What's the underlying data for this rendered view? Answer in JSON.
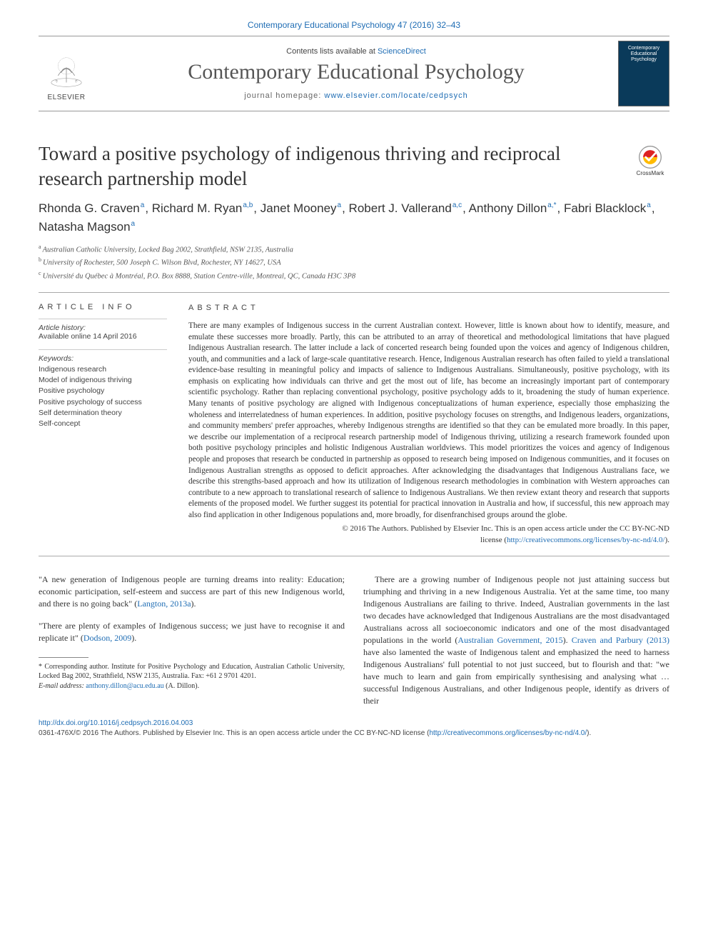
{
  "journal": {
    "headRef": "Contemporary Educational Psychology 47 (2016) 32–43",
    "contentsLine": "Contents lists available at ",
    "scienceDirect": "ScienceDirect",
    "title": "Contemporary Educational Psychology",
    "homepageLabel": "journal homepage: ",
    "homepageUrl": "www.elsevier.com/locate/cedpsych",
    "publisherWord": "ELSEVIER",
    "coverTop": "Contemporary Educational Psychology"
  },
  "article": {
    "title": "Toward a positive psychology of indigenous thriving and reciprocal research partnership model",
    "crossmark": "CrossMark"
  },
  "authors": [
    {
      "name": "Rhonda G. Craven",
      "aff": "a"
    },
    {
      "name": "Richard M. Ryan",
      "aff": "a,b"
    },
    {
      "name": "Janet Mooney",
      "aff": "a"
    },
    {
      "name": "Robert J. Vallerand",
      "aff": "a,c"
    },
    {
      "name": "Anthony Dillon",
      "aff": "a,*"
    },
    {
      "name": "Fabri Blacklock",
      "aff": "a"
    },
    {
      "name": "Natasha Magson",
      "aff": "a"
    }
  ],
  "affiliations": [
    {
      "sup": "a",
      "text": "Australian Catholic University, Locked Bag 2002, Strathfield, NSW 2135, Australia"
    },
    {
      "sup": "b",
      "text": "University of Rochester, 500 Joseph C. Wilson Blvd, Rochester, NY 14627, USA"
    },
    {
      "sup": "c",
      "text": "Université du Québec à Montréal, P.O. Box 8888, Station Centre-ville, Montreal, QC, Canada H3C 3P8"
    }
  ],
  "info": {
    "infoHead": "ARTICLE INFO",
    "historyLabel": "Article history:",
    "historyValue": "Available online 14 April 2016",
    "keywordsLabel": "Keywords:",
    "keywords": [
      "Indigenous research",
      "Model of indigenous thriving",
      "Positive psychology",
      "Positive psychology of success",
      "Self determination theory",
      "Self-concept"
    ]
  },
  "abstract": {
    "head": "ABSTRACT",
    "text": "There are many examples of Indigenous success in the current Australian context. However, little is known about how to identify, measure, and emulate these successes more broadly. Partly, this can be attributed to an array of theoretical and methodological limitations that have plagued Indigenous Australian research. The latter include a lack of concerted research being founded upon the voices and agency of Indigenous children, youth, and communities and a lack of large-scale quantitative research. Hence, Indigenous Australian research has often failed to yield a translational evidence-base resulting in meaningful policy and impacts of salience to Indigenous Australians. Simultaneously, positive psychology, with its emphasis on explicating how individuals can thrive and get the most out of life, has become an increasingly important part of contemporary scientific psychology. Rather than replacing conventional psychology, positive psychology adds to it, broadening the study of human experience. Many tenants of positive psychology are aligned with Indigenous conceptualizations of human experience, especially those emphasizing the wholeness and interrelatedness of human experiences. In addition, positive psychology focuses on strengths, and Indigenous leaders, organizations, and community members' prefer approaches, whereby Indigenous strengths are identified so that they can be emulated more broadly. In this paper, we describe our implementation of a reciprocal research partnership model of Indigenous thriving, utilizing a research framework founded upon both positive psychology principles and holistic Indigenous Australian worldviews. This model prioritizes the voices and agency of Indigenous people and proposes that research be conducted in partnership as opposed to research being imposed on Indigenous communities, and it focuses on Indigenous Australian strengths as opposed to deficit approaches. After acknowledging the disadvantages that Indigenous Australians face, we describe this strengths-based approach and how its utilization of Indigenous research methodologies in combination with Western approaches can contribute to a new approach to translational research of salience to Indigenous Australians. We then review extant theory and research that supports elements of the proposed model. We further suggest its potential for practical innovation in Australia and how, if successful, this new approach may also find application in other Indigenous populations and, more broadly, for disenfranchised groups around the globe.",
    "copyright1": "© 2016 The Authors. Published by Elsevier Inc. This is an open access article under the CC BY-NC-ND",
    "copyright2": "license (",
    "licenseUrl": "http://creativecommons.org/licenses/by-nc-nd/4.0/",
    "copyright3": ")."
  },
  "body": {
    "quote1a": "\"A new generation of Indigenous people are turning dreams into reality: Education; economic participation, self-esteem and success are part of this new Indigenous world, and there is no going back\" (",
    "quote1cite": "Langton, 2013a",
    "quote1b": ").",
    "quote2a": "\"There are plenty of examples of Indigenous success; we just have to recognise it and replicate it\" (",
    "quote2cite": "Dodson, 2009",
    "quote2b": ").",
    "col2a": "There are a growing number of Indigenous people not just attaining success but triumphing and thriving in a new Indigenous Australia. Yet at the same time, too many Indigenous Australians are failing to thrive. Indeed, Australian governments in the last two decades have acknowledged that Indigenous Australians are the most disadvantaged Australians across all socioeconomic indicators and one of the most disadvantaged populations in the world (",
    "col2cite1": "Australian Government, 2015",
    "col2b": "). ",
    "col2cite2": "Craven and Parbury (2013)",
    "col2c": " have also lamented the waste of Indigenous talent and emphasized the need to harness Indigenous Australians' full potential to not just succeed, but to flourish and that: \"we have much to learn and gain from empirically synthesising and analysing what … successful Indigenous Australians, and other Indigenous people, identify as drivers of their"
  },
  "footnote": {
    "corrStar": "*",
    "corrText": " Corresponding author. Institute for Positive Psychology and Education, Australian Catholic University, Locked Bag 2002, Strathfield, NSW 2135, Australia. Fax: +61 2 9701 4201.",
    "emailLabel": "E-mail address: ",
    "email": "anthony.dillon@acu.edu.au",
    "emailSuffix": " (A. Dillon)."
  },
  "footer": {
    "doi": "http://dx.doi.org/10.1016/j.cedpsych.2016.04.003",
    "issnLine1": "0361-476X/© 2016 The Authors. Published by Elsevier Inc. This is an open access article under the CC BY-NC-ND license (",
    "issnUrl": "http://creativecommons.org/licenses/by-nc-nd/4.0/",
    "issnLine2": ")."
  },
  "colors": {
    "link": "#1f6db4",
    "rule": "#aaaaaa",
    "text": "#333333"
  }
}
